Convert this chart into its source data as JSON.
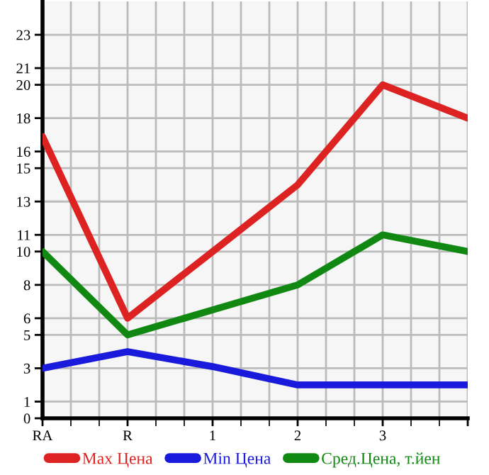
{
  "chart_data": {
    "type": "line",
    "categories": [
      "RA",
      "R",
      "1",
      "2",
      "3",
      null
    ],
    "series": [
      {
        "name": "Max Цена",
        "color": "#dd2222",
        "values": [
          16.9,
          6.0,
          10.0,
          14.0,
          20.0,
          18.0
        ]
      },
      {
        "name": "Min Цена",
        "color": "#1a1adc",
        "values": [
          3.0,
          4.0,
          3.1,
          2.0,
          2.0,
          2.0
        ]
      },
      {
        "name": "Сред.Цена, т.йен",
        "color": "#118811",
        "values": [
          10.0,
          5.0,
          6.5,
          8.0,
          11.0,
          10.0
        ]
      }
    ],
    "ylim": [
      0,
      25
    ],
    "yticks": [
      0,
      1,
      3,
      5,
      6,
      8,
      10,
      11,
      13,
      15,
      16,
      18,
      20,
      21,
      23
    ],
    "grid": true,
    "legend": "bottom",
    "marker": "none",
    "line_style": "solid"
  }
}
